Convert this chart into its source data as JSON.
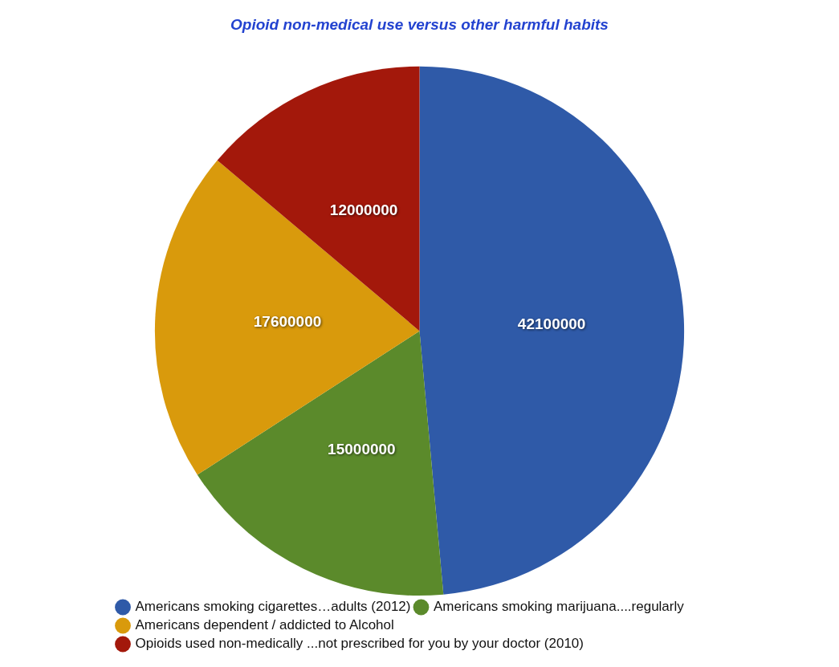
{
  "chart_data": {
    "type": "pie",
    "title": "Opioid non-medical use versus other harmful habits",
    "categories": [
      "Americans smoking cigarettes…adults (2012)",
      "Americans smoking marijuana....regularly",
      "Americans dependent / addicted to Alcohol",
      "Opioids used non-medically ...not prescribed for you by your doctor (2010)"
    ],
    "values": [
      42100000,
      15000000,
      17600000,
      12000000
    ],
    "colors": [
      "#2f5aa8",
      "#5b8a2b",
      "#d99a0c",
      "#a3180b"
    ],
    "data_labels": true,
    "legend": "bottom"
  }
}
